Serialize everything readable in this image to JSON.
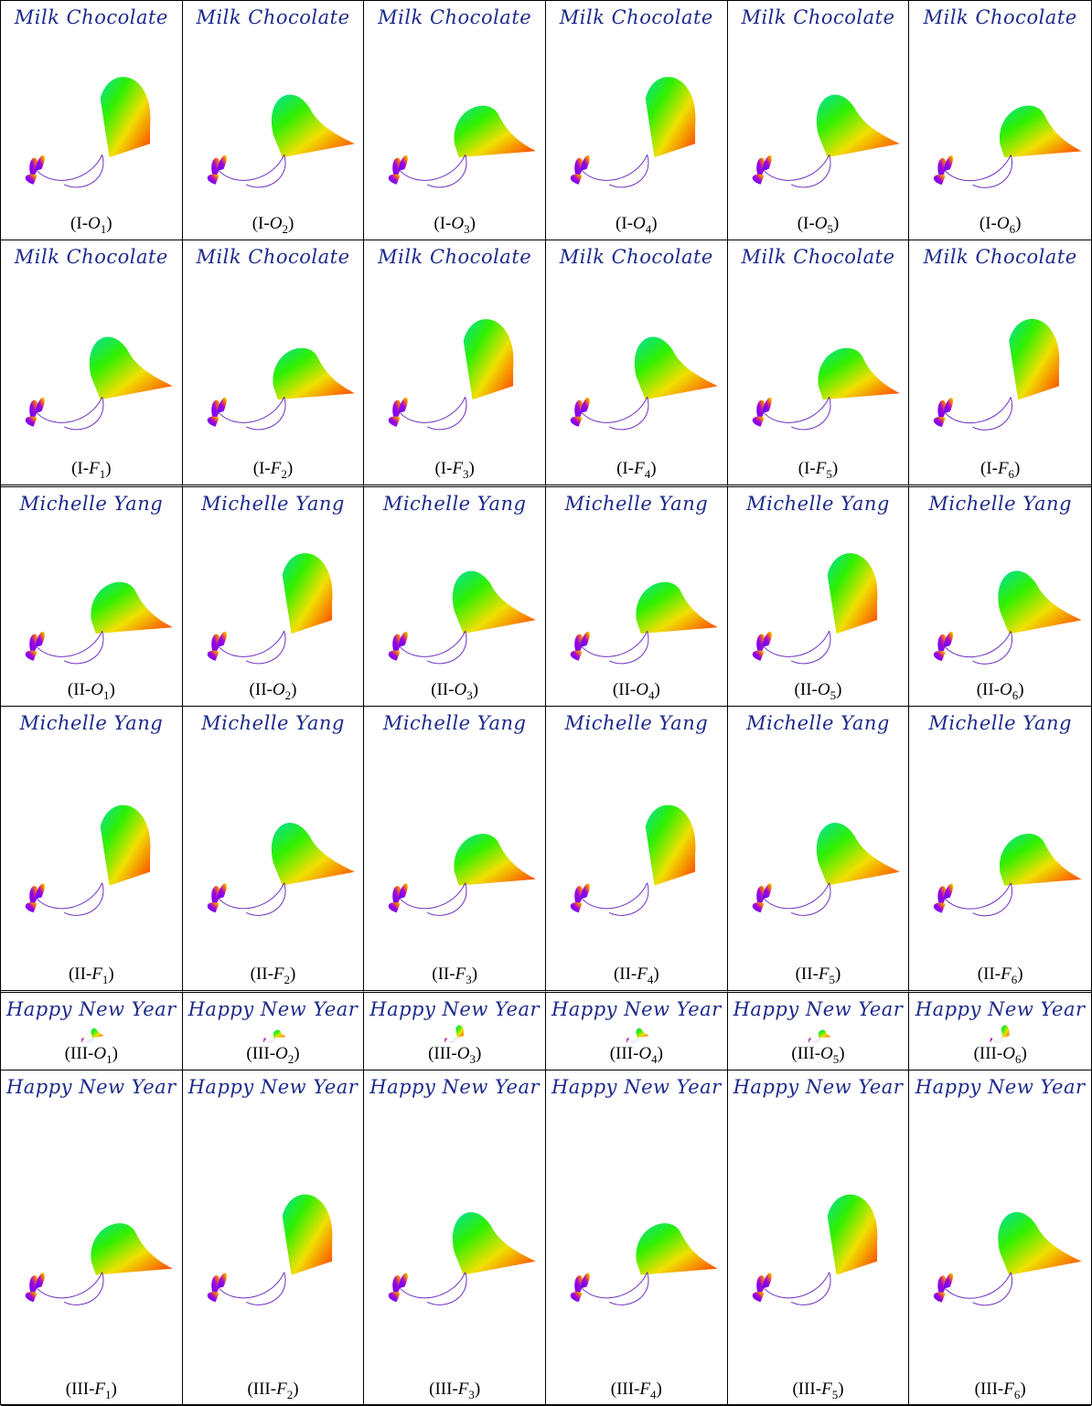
{
  "rows": [
    {
      "signature": "Milk Chocolate",
      "captions": [
        {
          "pre": "(I-",
          "var": "O",
          "sub": "1",
          "post": ")"
        },
        {
          "pre": "(I-",
          "var": "O",
          "sub": "2",
          "post": ")"
        },
        {
          "pre": "(I-",
          "var": "O",
          "sub": "3",
          "post": ")"
        },
        {
          "pre": "(I-",
          "var": "O",
          "sub": "4",
          "post": ")"
        },
        {
          "pre": "(I-",
          "var": "O",
          "sub": "5",
          "post": ")"
        },
        {
          "pre": "(I-",
          "var": "O",
          "sub": "6",
          "post": ")"
        }
      ]
    },
    {
      "signature": "Milk Chocolate",
      "captions": [
        {
          "pre": "(I-",
          "var": "F",
          "sub": "1",
          "post": ")"
        },
        {
          "pre": "(I-",
          "var": "F",
          "sub": "2",
          "post": ")"
        },
        {
          "pre": "(I-",
          "var": "F",
          "sub": "3",
          "post": ")"
        },
        {
          "pre": "(I-",
          "var": "F",
          "sub": "4",
          "post": ")"
        },
        {
          "pre": "(I-",
          "var": "F",
          "sub": "5",
          "post": ")"
        },
        {
          "pre": "(I-",
          "var": "F",
          "sub": "6",
          "post": ")"
        }
      ]
    },
    {
      "signature": "Michelle Yang",
      "captions": [
        {
          "pre": "(II-",
          "var": "O",
          "sub": "1",
          "post": ")"
        },
        {
          "pre": "(II-",
          "var": "O",
          "sub": "2",
          "post": ")"
        },
        {
          "pre": "(II-",
          "var": "O",
          "sub": "3",
          "post": ")"
        },
        {
          "pre": "(II-",
          "var": "O",
          "sub": "4",
          "post": ")"
        },
        {
          "pre": "(II-",
          "var": "O",
          "sub": "5",
          "post": ")"
        },
        {
          "pre": "(II-",
          "var": "O",
          "sub": "6",
          "post": ")"
        }
      ]
    },
    {
      "signature": "Michelle Yang",
      "captions": [
        {
          "pre": "(II-",
          "var": "F",
          "sub": "1",
          "post": ")"
        },
        {
          "pre": "(II-",
          "var": "F",
          "sub": "2",
          "post": ")"
        },
        {
          "pre": "(II-",
          "var": "F",
          "sub": "3",
          "post": ")"
        },
        {
          "pre": "(II-",
          "var": "F",
          "sub": "4",
          "post": ")"
        },
        {
          "pre": "(II-",
          "var": "F",
          "sub": "5",
          "post": ")"
        },
        {
          "pre": "(II-",
          "var": "F",
          "sub": "6",
          "post": ")"
        }
      ]
    },
    {
      "signature": "Happy New Year",
      "captions": [
        {
          "pre": "(III-",
          "var": "O",
          "sub": "1",
          "post": ")"
        },
        {
          "pre": "(III-",
          "var": "O",
          "sub": "2",
          "post": ")"
        },
        {
          "pre": "(III-",
          "var": "O",
          "sub": "3",
          "post": ")"
        },
        {
          "pre": "(III-",
          "var": "O",
          "sub": "4",
          "post": ")"
        },
        {
          "pre": "(III-",
          "var": "O",
          "sub": "5",
          "post": ")"
        },
        {
          "pre": "(III-",
          "var": "O",
          "sub": "6",
          "post": ")"
        }
      ]
    },
    {
      "signature": "Happy New Year",
      "captions": [
        {
          "pre": "(III-",
          "var": "F",
          "sub": "1",
          "post": ")"
        },
        {
          "pre": "(III-",
          "var": "F",
          "sub": "2",
          "post": ")"
        },
        {
          "pre": "(III-",
          "var": "F",
          "sub": "3",
          "post": ")"
        },
        {
          "pre": "(III-",
          "var": "F",
          "sub": "4",
          "post": ")"
        },
        {
          "pre": "(III-",
          "var": "F",
          "sub": "5",
          "post": ")"
        },
        {
          "pre": "(III-",
          "var": "F",
          "sub": "6",
          "post": ")"
        }
      ]
    }
  ]
}
